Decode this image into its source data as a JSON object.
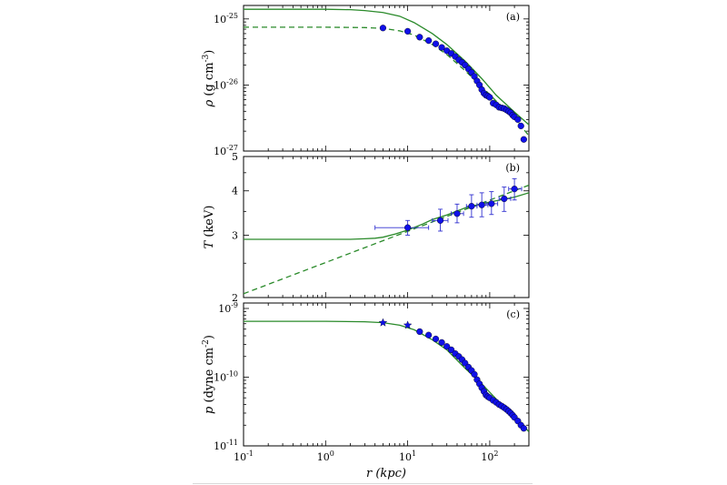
{
  "figure": {
    "xlabel": "r (kpc)",
    "xticks": [
      {
        "base": "10",
        "exp": "-1",
        "value": 0.1
      },
      {
        "base": "10",
        "exp": "0",
        "value": 1
      },
      {
        "base": "10",
        "exp": "1",
        "value": 10
      },
      {
        "base": "10",
        "exp": "2",
        "value": 100
      }
    ]
  },
  "colors": {
    "model": "#2a8a2a",
    "points": "#1010e8",
    "errorbars": "#3030d0"
  },
  "chart_data": [
    {
      "type": "scatter",
      "panel_label": "(a)",
      "ylabel": "ρ (g cm^-3)",
      "xscale": "log",
      "yscale": "log",
      "xlim": [
        0.1,
        300
      ],
      "ylim": [
        1e-27,
        1.6e-25
      ],
      "yticks": [
        {
          "base": "10",
          "exp": "-25",
          "value": 1e-25
        },
        {
          "base": "10",
          "exp": "-26",
          "value": 1e-26
        },
        {
          "base": "10",
          "exp": "-27",
          "value": 1e-27
        }
      ],
      "series": [
        {
          "style": "solid-line",
          "x": [
            0.1,
            1,
            2,
            3,
            5,
            8,
            12,
            20,
            30,
            50,
            80,
            120,
            200,
            300
          ],
          "y": [
            1.4e-25,
            1.4e-25,
            1.38e-25,
            1.34e-25,
            1.25e-25,
            1.1e-25,
            8.8e-26,
            6e-26,
            4.1e-26,
            2.3e-26,
            1.25e-26,
            7e-27,
            3.9e-27,
            2.5e-27
          ]
        },
        {
          "style": "dashed-line",
          "x": [
            0.1,
            1,
            3,
            5,
            8,
            12,
            20,
            30,
            50,
            80,
            120,
            200,
            300
          ],
          "y": [
            7.5e-26,
            7.5e-26,
            7.4e-26,
            7.2e-26,
            6.6e-26,
            5.7e-26,
            4.1e-26,
            2.9e-26,
            1.65e-26,
            9.5e-27,
            5.7e-27,
            3.2e-27,
            1.7e-27
          ]
        },
        {
          "style": "points",
          "x": [
            5,
            10,
            14,
            18,
            22,
            26,
            30,
            34,
            38,
            42,
            46,
            50,
            55,
            60,
            65,
            70,
            75,
            80,
            85,
            90,
            95,
            100,
            110,
            120,
            130,
            140,
            150,
            160,
            170,
            180,
            190,
            200,
            220,
            240,
            260
          ],
          "y": [
            7.3e-26,
            6.5e-26,
            5.3e-26,
            4.7e-26,
            4.2e-26,
            3.7e-26,
            3.3e-26,
            3e-26,
            2.7e-26,
            2.4e-26,
            2.2e-26,
            2e-26,
            1.75e-26,
            1.55e-26,
            1.35e-26,
            1.15e-26,
            1e-26,
            8.5e-27,
            7.5e-27,
            7e-27,
            6.8e-27,
            6.5e-27,
            5.3e-27,
            5e-27,
            4.6e-27,
            4.5e-27,
            4.4e-27,
            4.2e-27,
            4e-27,
            3.8e-27,
            3.5e-27,
            3.3e-27,
            3e-27,
            2.4e-27,
            1.5e-27
          ]
        }
      ]
    },
    {
      "type": "scatter",
      "panel_label": "(b)",
      "ylabel": "T (keV)",
      "xscale": "log",
      "yscale": "log",
      "xlim": [
        0.1,
        300
      ],
      "ylim": [
        2,
        5
      ],
      "yticks": [
        {
          "label": "5",
          "value": 5
        },
        {
          "label": "4",
          "value": 4
        },
        {
          "label": "3",
          "value": 3
        },
        {
          "label": "2",
          "value": 2
        }
      ],
      "series": [
        {
          "style": "solid-line",
          "x": [
            0.1,
            1,
            2,
            3,
            4,
            5,
            7,
            10,
            15,
            20,
            30,
            50,
            80,
            120,
            200,
            300
          ],
          "y": [
            2.92,
            2.92,
            2.92,
            2.93,
            2.94,
            2.96,
            3.02,
            3.1,
            3.22,
            3.32,
            3.42,
            3.58,
            3.68,
            3.75,
            3.84,
            3.95
          ]
        },
        {
          "style": "dashed-line",
          "x": [
            0.1,
            300
          ],
          "y": [
            2.05,
            4.15
          ]
        },
        {
          "style": "points-with-errorbars",
          "x": [
            10,
            25,
            40,
            60,
            80,
            105,
            150,
            200
          ],
          "y": [
            3.15,
            3.3,
            3.45,
            3.62,
            3.65,
            3.68,
            3.8,
            4.05
          ],
          "xerr": [
            [
              6,
              8
            ],
            [
              5,
              6
            ],
            [
              6,
              8
            ],
            [
              8,
              10
            ],
            [
              10,
              15
            ],
            [
              15,
              20
            ],
            [
              20,
              30
            ],
            [
              30,
              45
            ]
          ],
          "yerr": [
            [
              0.15,
              0.15
            ],
            [
              0.22,
              0.25
            ],
            [
              0.2,
              0.22
            ],
            [
              0.25,
              0.28
            ],
            [
              0.27,
              0.3
            ],
            [
              0.25,
              0.3
            ],
            [
              0.3,
              0.3
            ],
            [
              0.28,
              0.28
            ]
          ]
        }
      ]
    },
    {
      "type": "scatter",
      "panel_label": "(c)",
      "ylabel": "p (dyne cm^-2)",
      "xscale": "log",
      "yscale": "log",
      "xlim": [
        0.1,
        300
      ],
      "ylim": [
        1e-11,
        1.2e-09
      ],
      "yticks": [
        {
          "base": "10",
          "exp": "-9",
          "value": 1e-09
        },
        {
          "base": "10",
          "exp": "-10",
          "value": 1e-10
        },
        {
          "base": "10",
          "exp": "-11",
          "value": 1e-11
        }
      ],
      "series": [
        {
          "style": "solid-line",
          "x": [
            0.1,
            1,
            3,
            5,
            8,
            12,
            20,
            30,
            50,
            80,
            120,
            200,
            300
          ],
          "y": [
            6.5e-10,
            6.5e-10,
            6.4e-10,
            6.2e-10,
            5.7e-10,
            4.9e-10,
            3.5e-10,
            2.5e-10,
            1.35e-10,
            8e-11,
            4.8e-11,
            2.8e-11,
            1.6e-11
          ]
        },
        {
          "style": "stars",
          "x": [
            5,
            10
          ],
          "y": [
            6.2e-10,
            5.7e-10
          ]
        },
        {
          "style": "points",
          "x": [
            14,
            18,
            22,
            26,
            30,
            34,
            38,
            42,
            46,
            50,
            55,
            60,
            65,
            70,
            75,
            80,
            85,
            90,
            95,
            100,
            110,
            120,
            130,
            140,
            150,
            160,
            170,
            180,
            190,
            200,
            220,
            240,
            260
          ],
          "y": [
            4.6e-10,
            4.1e-10,
            3.6e-10,
            3.2e-10,
            2.8e-10,
            2.5e-10,
            2.2e-10,
            2e-10,
            1.8e-10,
            1.6e-10,
            1.4e-10,
            1.25e-10,
            1.1e-10,
            9.2e-11,
            8e-11,
            7e-11,
            6.2e-11,
            5.5e-11,
            5.2e-11,
            5e-11,
            4.6e-11,
            4.3e-11,
            4e-11,
            3.8e-11,
            3.6e-11,
            3.4e-11,
            3.2e-11,
            3e-11,
            2.8e-11,
            2.6e-11,
            2.3e-11,
            2e-11,
            1.8e-11
          ]
        }
      ]
    }
  ]
}
